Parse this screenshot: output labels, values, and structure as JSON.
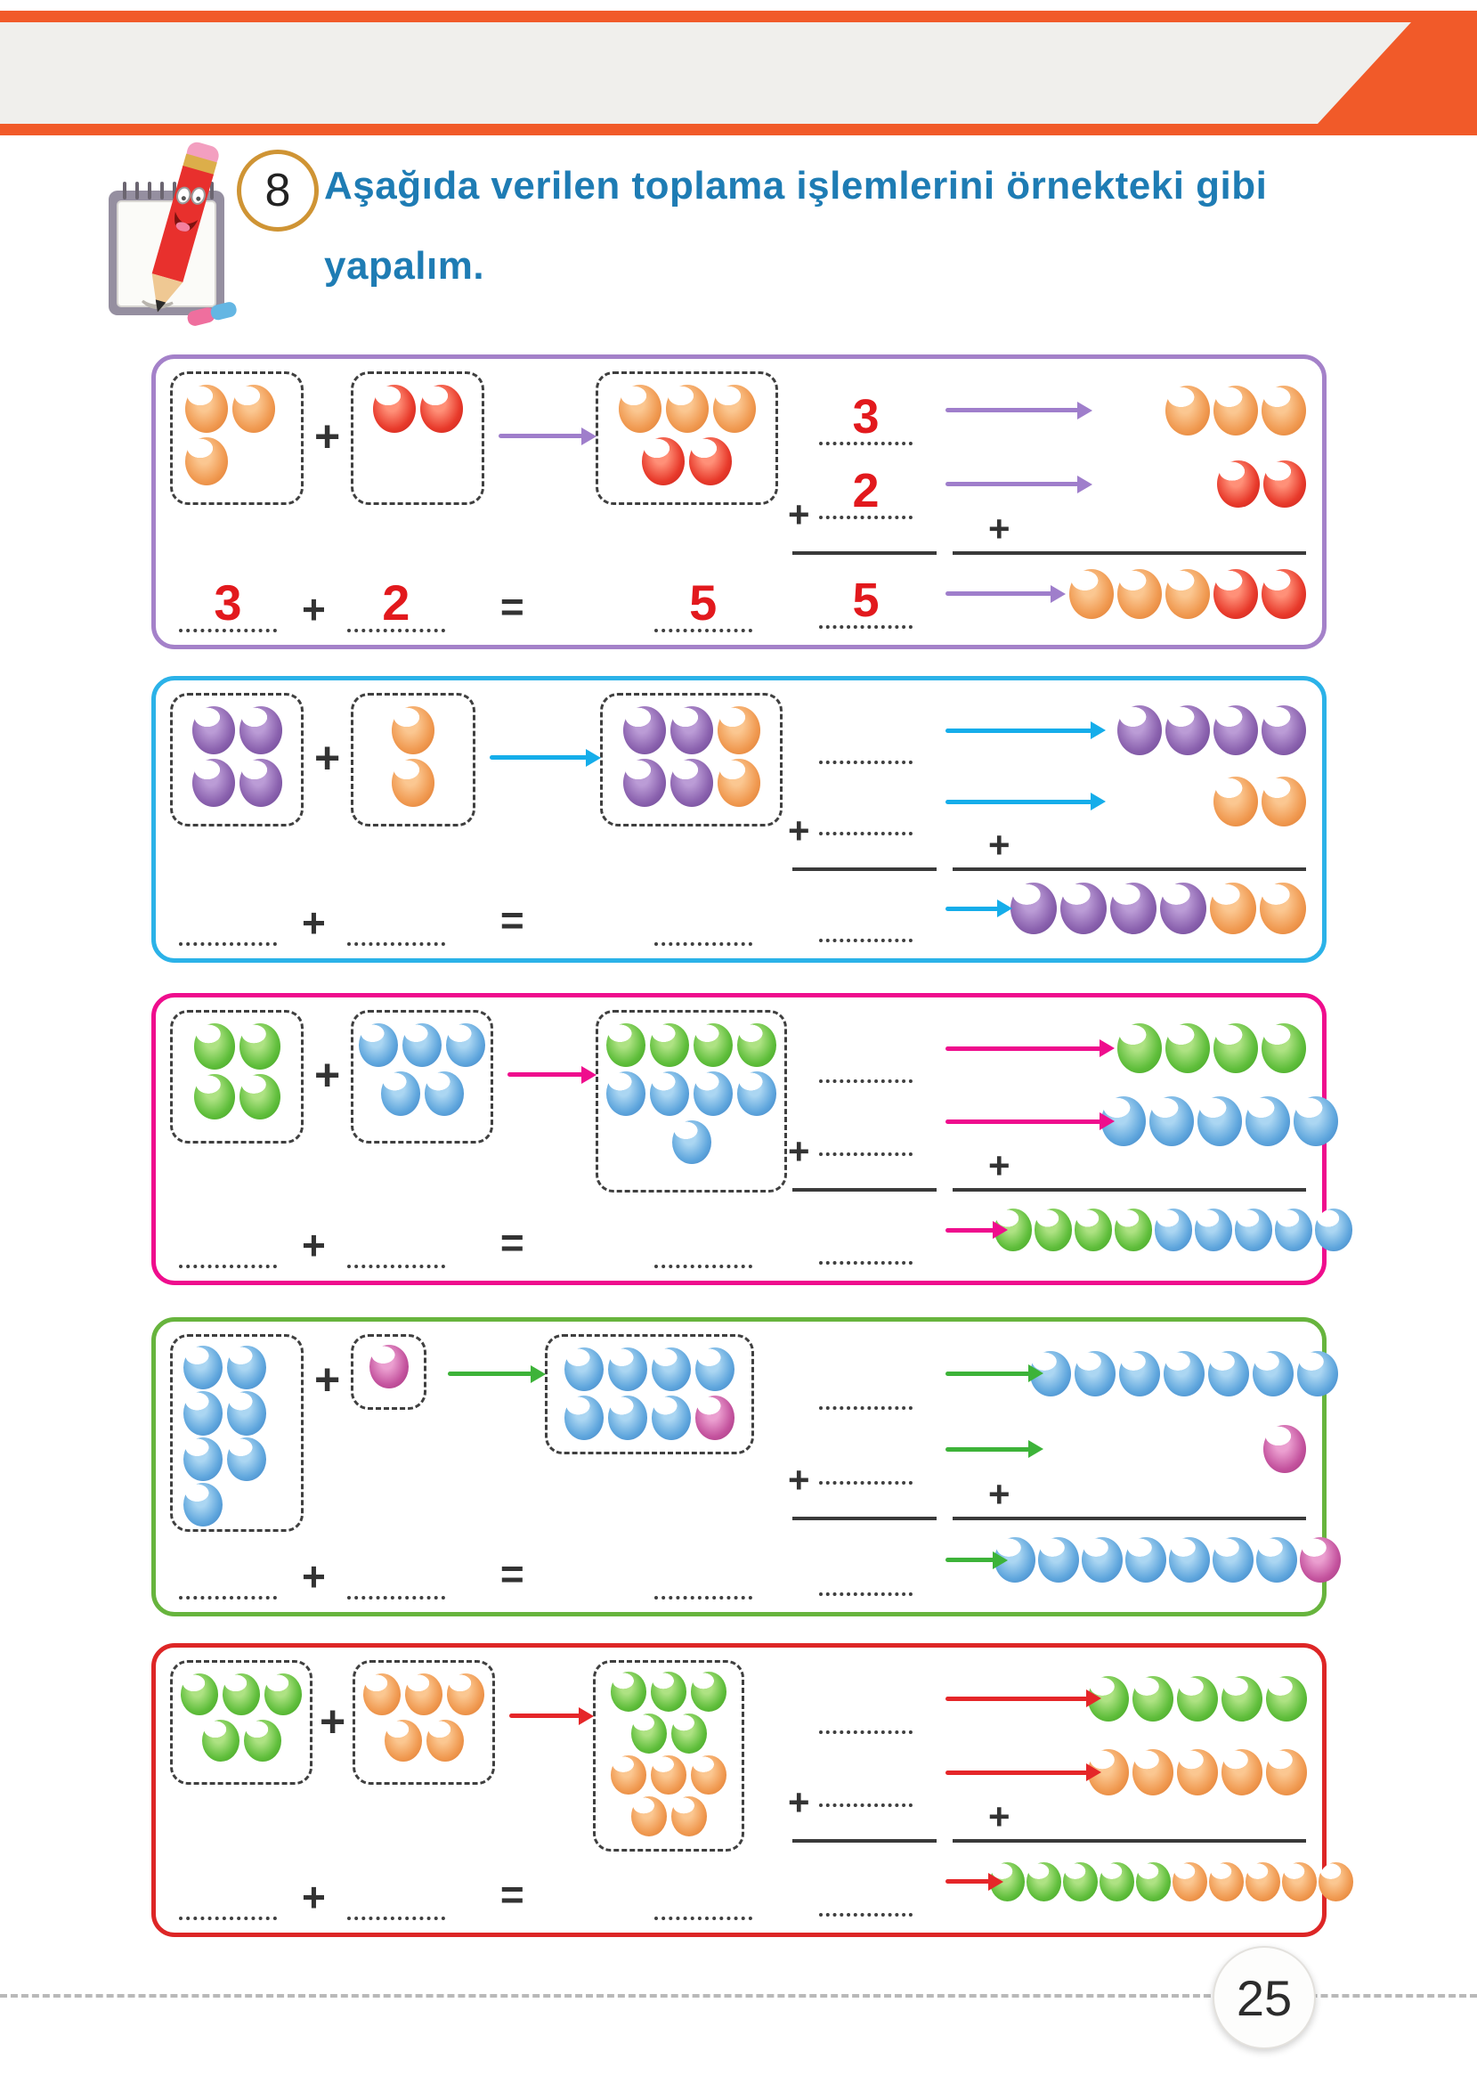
{
  "instruction": {
    "badge": "8",
    "line1": "Aşağıda verilen toplama işlemlerini örnekteki gibi",
    "line2": "yapalım."
  },
  "symbols": {
    "plus": "+",
    "equals": "="
  },
  "footer": {
    "page_number": "25"
  },
  "palette": {
    "header_orange": "#f15a29",
    "header_inner_gray": "#f0efec",
    "instruction_blue": "#1e7cb4",
    "handwritten_red": "#e2191d",
    "ink": "#3a3a3a",
    "ball_orange": "#f09950",
    "ball_red": "#e83a2b",
    "ball_purple": "#8a61ae",
    "ball_green": "#5fbe3b",
    "ball_blue": "#5fa6dd",
    "ball_pink": "#c4539e"
  },
  "exercises": [
    {
      "name": "exercise-1",
      "accent": "#a481c9",
      "equation": {
        "a": "3",
        "b": "2",
        "sum": "5"
      },
      "vertical": {
        "a": "3",
        "b": "2",
        "sum": "5"
      },
      "addend1_balls": [
        [
          "orange",
          "orange"
        ],
        [
          "orange"
        ]
      ],
      "addend2_balls": [
        [
          "red",
          "red"
        ]
      ],
      "result_balls": [
        [
          "orange",
          "orange",
          "orange"
        ],
        [
          "red",
          "red"
        ]
      ],
      "row1_balls": [
        [
          "orange",
          "orange",
          "orange"
        ]
      ],
      "row2_balls": [
        [
          "red",
          "red"
        ]
      ],
      "row3_balls": [
        [
          "orange",
          "orange",
          "orange",
          "red",
          "red"
        ]
      ]
    },
    {
      "name": "exercise-2",
      "accent": "#2bb2e8",
      "equation": {
        "a": "",
        "b": "",
        "sum": ""
      },
      "vertical": {
        "a": "",
        "b": "",
        "sum": ""
      },
      "addend1_balls": [
        [
          "purple",
          "purple"
        ],
        [
          "purple",
          "purple"
        ]
      ],
      "addend2_balls": [
        [
          "orange"
        ],
        [
          "orange"
        ]
      ],
      "result_balls": [
        [
          "purple",
          "purple",
          "orange"
        ],
        [
          "purple",
          "purple",
          "orange"
        ]
      ],
      "row1_balls": [
        [
          "purple",
          "purple",
          "purple",
          "purple"
        ]
      ],
      "row2_balls": [
        [
          "orange",
          "orange"
        ]
      ],
      "row3_balls": [
        [
          "purple",
          "purple",
          "purple",
          "purple",
          "orange",
          "orange"
        ]
      ]
    },
    {
      "name": "exercise-3",
      "accent": "#ef0d8d",
      "equation": {
        "a": "",
        "b": "",
        "sum": ""
      },
      "vertical": {
        "a": "",
        "b": "",
        "sum": ""
      },
      "addend1_balls": [
        [
          "green",
          "green"
        ],
        [
          "green",
          "green"
        ]
      ],
      "addend2_balls": [
        [
          "blue",
          "blue",
          "blue"
        ],
        [
          "blue",
          "blue"
        ]
      ],
      "result_balls": [
        [
          "green",
          "green",
          "green",
          "green"
        ],
        [
          "blue",
          "blue",
          "blue",
          "blue"
        ],
        [
          "blue"
        ]
      ],
      "row1_balls": [
        [
          "green",
          "green",
          "green",
          "green"
        ]
      ],
      "row2_balls": [
        [
          "blue",
          "blue",
          "blue",
          "blue",
          "blue"
        ]
      ],
      "row3_balls": [
        [
          "green",
          "green",
          "green",
          "green",
          "blue",
          "blue",
          "blue",
          "blue",
          "blue"
        ]
      ]
    },
    {
      "name": "exercise-4",
      "accent": "#67b43d",
      "equation": {
        "a": "",
        "b": "",
        "sum": ""
      },
      "vertical": {
        "a": "",
        "b": "",
        "sum": ""
      },
      "addend1_balls": [
        [
          "blue",
          "blue"
        ],
        [
          "blue",
          "blue"
        ],
        [
          "blue",
          "blue"
        ],
        [
          "blue"
        ]
      ],
      "addend2_balls": [
        [
          "pink"
        ]
      ],
      "result_balls": [
        [
          "blue",
          "blue",
          "blue",
          "blue"
        ],
        [
          "blue",
          "blue",
          "blue",
          "pink"
        ]
      ],
      "row1_balls": [
        [
          "blue",
          "blue",
          "blue",
          "blue",
          "blue",
          "blue",
          "blue"
        ]
      ],
      "row2_balls": [
        [
          "pink"
        ]
      ],
      "row3_balls": [
        [
          "blue",
          "blue",
          "blue",
          "blue",
          "blue",
          "blue",
          "blue",
          "pink"
        ]
      ]
    },
    {
      "name": "exercise-5",
      "accent": "#dd2626",
      "equation": {
        "a": "",
        "b": "",
        "sum": ""
      },
      "vertical": {
        "a": "",
        "b": "",
        "sum": ""
      },
      "addend1_balls": [
        [
          "green",
          "green",
          "green"
        ],
        [
          "green",
          "green"
        ]
      ],
      "addend2_balls": [
        [
          "orange",
          "orange",
          "orange"
        ],
        [
          "orange",
          "orange"
        ]
      ],
      "result_balls": [
        [
          "green",
          "green",
          "green"
        ],
        [
          "green",
          "green"
        ],
        [
          "orange",
          "orange",
          "orange"
        ],
        [
          "orange",
          "orange"
        ]
      ],
      "row1_balls": [
        [
          "green",
          "green",
          "green",
          "green",
          "green"
        ]
      ],
      "row2_balls": [
        [
          "orange",
          "orange",
          "orange",
          "orange",
          "orange"
        ]
      ],
      "row3_balls": [
        [
          "green",
          "green",
          "green",
          "green",
          "green",
          "orange",
          "orange",
          "orange",
          "orange",
          "orange"
        ]
      ]
    }
  ]
}
